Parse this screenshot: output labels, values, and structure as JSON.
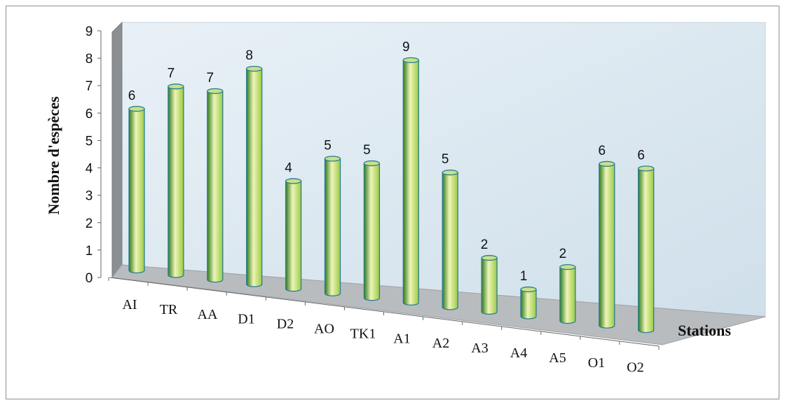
{
  "chart_data": {
    "type": "bar",
    "style": "3d-cylinder",
    "categories": [
      "AI",
      "TR",
      "AA",
      "D1",
      "D2",
      "AO",
      "TK1",
      "A1",
      "A2",
      "A3",
      "A4",
      "A5",
      "O1",
      "O2"
    ],
    "values": [
      6,
      7,
      7,
      8,
      4,
      5,
      5,
      9,
      5,
      2,
      1,
      2,
      6,
      6
    ],
    "data_labels": [
      "6",
      "7",
      "7",
      "8",
      "4",
      "5",
      "5",
      "9",
      "5",
      "2",
      "1",
      "2",
      "6",
      "6"
    ],
    "xlabel": "Stations",
    "ylabel": "Nombre d'espèces",
    "ylim": [
      0,
      9
    ],
    "yticks": [
      "0",
      "1",
      "2",
      "3",
      "4",
      "5",
      "6",
      "7",
      "8",
      "9"
    ],
    "grid": false,
    "legend": "none",
    "colors": {
      "bar_light": "#eef5b8",
      "bar_mid": "#9ccb45",
      "bar_dark": "#2f7a1c",
      "bar_top": "#c9e08a",
      "bar_outline": "#2b7f8f",
      "wall": "#dce9f2",
      "floor": "#b9bcbf",
      "side_wall": "#8c8f92"
    }
  }
}
